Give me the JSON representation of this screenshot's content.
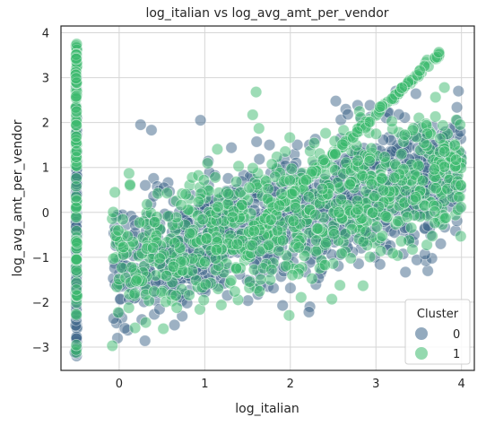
{
  "chart_data": {
    "type": "scatter",
    "title": "log_italian vs log_avg_amt_per_vendor",
    "xlabel": "log_italian",
    "ylabel": "log_avg_amt_per_vendor",
    "xlim": [
      -0.68,
      4.15
    ],
    "ylim": [
      -3.52,
      4.15
    ],
    "xticks": [
      0,
      1,
      2,
      3,
      4
    ],
    "yticks": [
      -3,
      -2,
      -1,
      0,
      1,
      2,
      3,
      4
    ],
    "grid": true,
    "legend": {
      "title": "Cluster",
      "placement": "bottom-right"
    },
    "series": [
      {
        "name": "0",
        "color": "#3b6488",
        "opacity": 0.5
      },
      {
        "name": "1",
        "color": "#3cb96e",
        "opacity": 0.5
      }
    ],
    "points_summary": {
      "vertical_band": {
        "x": -0.5,
        "y_range": [
          -3.2,
          3.75
        ]
      },
      "main_cloud": {
        "x_range": [
          -0.1,
          4.0
        ],
        "y_range": [
          -2.9,
          2.7
        ]
      },
      "diagonal_band": {
        "x_range": [
          1.5,
          3.75
        ],
        "y_range": [
          -0.5,
          3.55
        ],
        "series": "1"
      }
    }
  }
}
